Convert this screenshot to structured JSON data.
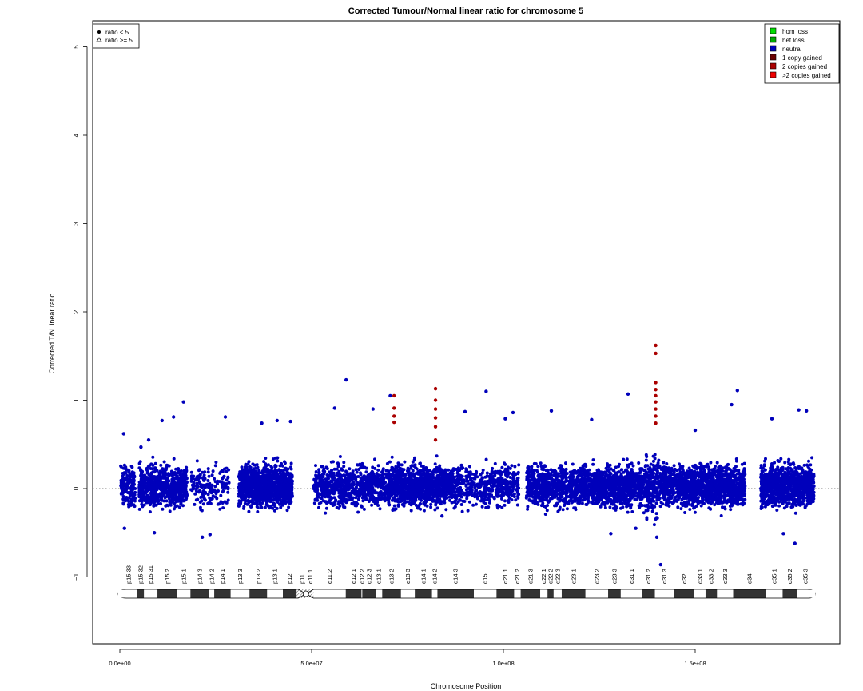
{
  "chart_data": {
    "type": "scatter",
    "title": "Corrected Tumour/Normal linear ratio for chromosome  5",
    "xlabel": "Chromosome Position",
    "ylabel": "Corrected T/N linear ratio",
    "xlim": [
      -7000000,
      188000000
    ],
    "ylim": [
      -1.8,
      5.25
    ],
    "x_ticks": [
      0,
      50000000,
      100000000,
      150000000
    ],
    "x_tick_labels": [
      "0.0e+00",
      "5.0e+07",
      "1.0e+08",
      "1.5e+08"
    ],
    "y_ticks": [
      -1,
      0,
      1,
      2,
      3,
      4,
      5
    ],
    "y_tick_labels": [
      "−1",
      "0",
      "1",
      "2",
      "3",
      "4",
      "5"
    ],
    "baseline": 0,
    "shape_legend": {
      "position": "top-left",
      "entries": [
        {
          "symbol": "filled-circle",
          "label": "ratio < 5"
        },
        {
          "symbol": "open-triangle",
          "label": "ratio >= 5"
        }
      ]
    },
    "legend": {
      "position": "top-right",
      "entries": [
        {
          "label": "hom loss",
          "color": "#00dd00"
        },
        {
          "label": "het loss",
          "color": "#00aa00"
        },
        {
          "label": "neutral",
          "color": "#0000bb"
        },
        {
          "label": "1 copy gained",
          "color": "#6a0000"
        },
        {
          "label": "2 copies gained",
          "color": "#aa0000"
        },
        {
          "label": ">2 copies gained",
          "color": "#ee0000"
        }
      ]
    },
    "series": [
      {
        "name": "neutral",
        "color": "#0000bb",
        "points": [
          {
            "x": 1000000,
            "y": 0.62
          },
          {
            "x": 1200000,
            "y": -0.45
          },
          {
            "x": 5500000,
            "y": 0.47
          },
          {
            "x": 7500000,
            "y": 0.55
          },
          {
            "x": 9000000,
            "y": -0.5
          },
          {
            "x": 11000000,
            "y": 0.77
          },
          {
            "x": 14000000,
            "y": 0.81
          },
          {
            "x": 16600000,
            "y": 0.98
          },
          {
            "x": 21500000,
            "y": -0.55
          },
          {
            "x": 23500000,
            "y": -0.52
          },
          {
            "x": 27500000,
            "y": 0.81
          },
          {
            "x": 37000000,
            "y": 0.74
          },
          {
            "x": 41000000,
            "y": 0.77
          },
          {
            "x": 44500000,
            "y": 0.76
          },
          {
            "x": 56000000,
            "y": 0.91
          },
          {
            "x": 59000000,
            "y": 1.23
          },
          {
            "x": 66000000,
            "y": 0.9
          },
          {
            "x": 70500000,
            "y": 1.05
          },
          {
            "x": 84000000,
            "y": -0.31
          },
          {
            "x": 90000000,
            "y": 0.87
          },
          {
            "x": 95500000,
            "y": 1.1
          },
          {
            "x": 100500000,
            "y": 0.79
          },
          {
            "x": 102500000,
            "y": 0.86
          },
          {
            "x": 112500000,
            "y": 0.88
          },
          {
            "x": 123000000,
            "y": 0.78
          },
          {
            "x": 128000000,
            "y": -0.51
          },
          {
            "x": 132500000,
            "y": 1.07
          },
          {
            "x": 134500000,
            "y": -0.45
          },
          {
            "x": 140000000,
            "y": -0.55
          },
          {
            "x": 141000000,
            "y": -0.86
          },
          {
            "x": 150000000,
            "y": 0.66
          },
          {
            "x": 159500000,
            "y": 0.95
          },
          {
            "x": 161000000,
            "y": 1.11
          },
          {
            "x": 170000000,
            "y": 0.79
          },
          {
            "x": 173000000,
            "y": -0.51
          },
          {
            "x": 176000000,
            "y": -0.62
          },
          {
            "x": 177000000,
            "y": 0.89
          },
          {
            "x": 179000000,
            "y": 0.88
          }
        ]
      },
      {
        "name": "2 copies gained",
        "color": "#aa0000",
        "points": [
          {
            "x": 71500000,
            "y": 1.05
          },
          {
            "x": 71500000,
            "y": 0.91
          },
          {
            "x": 71500000,
            "y": 0.82
          },
          {
            "x": 71500000,
            "y": 0.75
          },
          {
            "x": 82300000,
            "y": 1.13
          },
          {
            "x": 82300000,
            "y": 1.0
          },
          {
            "x": 82300000,
            "y": 0.9
          },
          {
            "x": 82300000,
            "y": 0.8
          },
          {
            "x": 82300000,
            "y": 0.7
          },
          {
            "x": 82300000,
            "y": 0.55
          },
          {
            "x": 139700000,
            "y": 1.62
          },
          {
            "x": 139700000,
            "y": 1.53
          },
          {
            "x": 139700000,
            "y": 1.2
          },
          {
            "x": 139700000,
            "y": 1.12
          },
          {
            "x": 139700000,
            "y": 1.05
          },
          {
            "x": 139700000,
            "y": 0.98
          },
          {
            "x": 139700000,
            "y": 0.9
          },
          {
            "x": 139700000,
            "y": 0.82
          },
          {
            "x": 139700000,
            "y": 0.74
          }
        ]
      }
    ],
    "ideogram": {
      "centromere": [
        46500000,
        50500000
      ],
      "bands": [
        {
          "name": "p15.33",
          "start": 0,
          "end": 4500000,
          "stain": "gneg"
        },
        {
          "name": "p15.32",
          "start": 4500000,
          "end": 6300000,
          "stain": "gpos"
        },
        {
          "name": "p15.31",
          "start": 6300000,
          "end": 9800000,
          "stain": "gneg"
        },
        {
          "name": "p15.2",
          "start": 9800000,
          "end": 15000000,
          "stain": "gpos"
        },
        {
          "name": "p15.1",
          "start": 15000000,
          "end": 18400000,
          "stain": "gneg"
        },
        {
          "name": "p14.3",
          "start": 18400000,
          "end": 23300000,
          "stain": "gpos"
        },
        {
          "name": "p14.2",
          "start": 23300000,
          "end": 24600000,
          "stain": "gneg"
        },
        {
          "name": "p14.1",
          "start": 24600000,
          "end": 28900000,
          "stain": "gpos"
        },
        {
          "name": "p13.3",
          "start": 28900000,
          "end": 33800000,
          "stain": "gneg"
        },
        {
          "name": "p13.2",
          "start": 33800000,
          "end": 38400000,
          "stain": "gpos"
        },
        {
          "name": "p13.1",
          "start": 38400000,
          "end": 42500000,
          "stain": "gneg"
        },
        {
          "name": "p12",
          "start": 42500000,
          "end": 46100000,
          "stain": "gpos"
        },
        {
          "name": "p11",
          "start": 46100000,
          "end": 48800000,
          "stain": "acen"
        },
        {
          "name": "q11.1",
          "start": 48800000,
          "end": 50500000,
          "stain": "acen"
        },
        {
          "name": "q11.2",
          "start": 50500000,
          "end": 58900000,
          "stain": "gneg"
        },
        {
          "name": "q12.1",
          "start": 58900000,
          "end": 63000000,
          "stain": "gpos"
        },
        {
          "name": "q12.2",
          "start": 63000000,
          "end": 63200000,
          "stain": "gneg"
        },
        {
          "name": "q12.3",
          "start": 63200000,
          "end": 66700000,
          "stain": "gpos"
        },
        {
          "name": "q13.1",
          "start": 66700000,
          "end": 68400000,
          "stain": "gneg"
        },
        {
          "name": "q13.2",
          "start": 68400000,
          "end": 73300000,
          "stain": "gpos"
        },
        {
          "name": "q13.3",
          "start": 73300000,
          "end": 76900000,
          "stain": "gneg"
        },
        {
          "name": "q14.1",
          "start": 76900000,
          "end": 81400000,
          "stain": "gpos"
        },
        {
          "name": "q14.2",
          "start": 81400000,
          "end": 82800000,
          "stain": "gneg"
        },
        {
          "name": "q14.3",
          "start": 82800000,
          "end": 92300000,
          "stain": "gpos"
        },
        {
          "name": "q15",
          "start": 92300000,
          "end": 98200000,
          "stain": "gneg"
        },
        {
          "name": "q21.1",
          "start": 98200000,
          "end": 102800000,
          "stain": "gpos"
        },
        {
          "name": "q21.2",
          "start": 102800000,
          "end": 104500000,
          "stain": "gneg"
        },
        {
          "name": "q21.3",
          "start": 104500000,
          "end": 109600000,
          "stain": "gpos"
        },
        {
          "name": "q22.1",
          "start": 109600000,
          "end": 111500000,
          "stain": "gneg"
        },
        {
          "name": "q22.2",
          "start": 111500000,
          "end": 113100000,
          "stain": "gpos"
        },
        {
          "name": "q22.3",
          "start": 113100000,
          "end": 115200000,
          "stain": "gneg"
        },
        {
          "name": "q23.1",
          "start": 115200000,
          "end": 121400000,
          "stain": "gpos"
        },
        {
          "name": "q23.2",
          "start": 121400000,
          "end": 127300000,
          "stain": "gneg"
        },
        {
          "name": "q23.3",
          "start": 127300000,
          "end": 130600000,
          "stain": "gpos"
        },
        {
          "name": "q31.1",
          "start": 130600000,
          "end": 136200000,
          "stain": "gneg"
        },
        {
          "name": "q31.2",
          "start": 136200000,
          "end": 139500000,
          "stain": "gpos"
        },
        {
          "name": "q31.3",
          "start": 139500000,
          "end": 144500000,
          "stain": "gneg"
        },
        {
          "name": "q32",
          "start": 144500000,
          "end": 149800000,
          "stain": "gpos"
        },
        {
          "name": "q33.1",
          "start": 149800000,
          "end": 152700000,
          "stain": "gneg"
        },
        {
          "name": "q33.2",
          "start": 152700000,
          "end": 155700000,
          "stain": "gpos"
        },
        {
          "name": "q33.3",
          "start": 155700000,
          "end": 159900000,
          "stain": "gneg"
        },
        {
          "name": "q34",
          "start": 159900000,
          "end": 168500000,
          "stain": "gpos"
        },
        {
          "name": "q35.1",
          "start": 168500000,
          "end": 172800000,
          "stain": "gneg"
        },
        {
          "name": "q35.2",
          "start": 172800000,
          "end": 176600000,
          "stain": "gpos"
        },
        {
          "name": "q35.3",
          "start": 176600000,
          "end": 180900000,
          "stain": "gneg"
        }
      ]
    }
  }
}
